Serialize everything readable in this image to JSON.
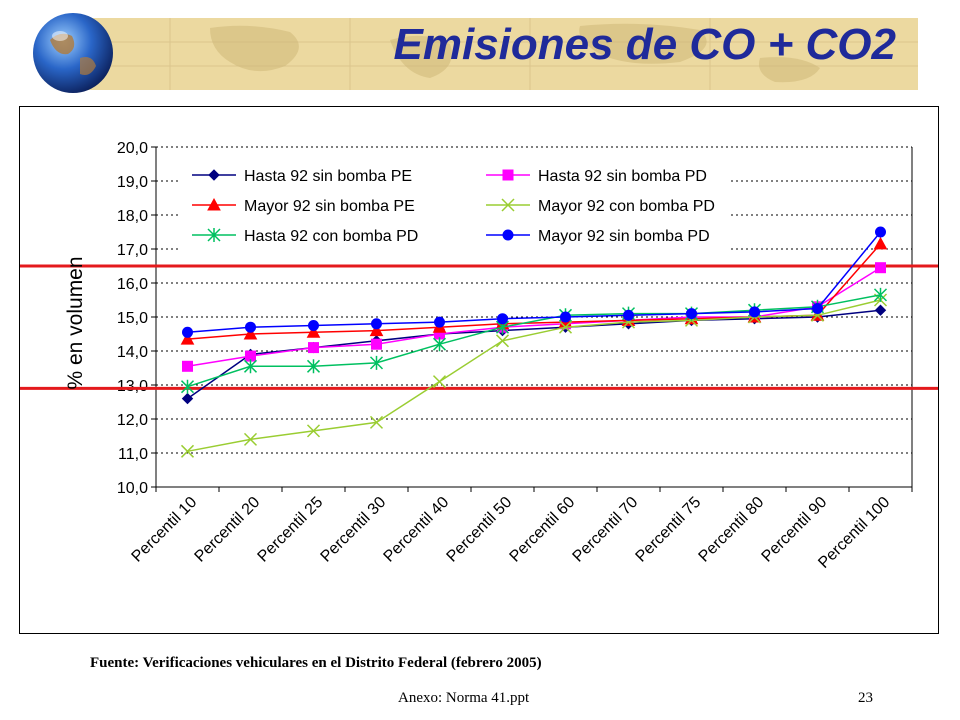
{
  "slide": {
    "title": "Emisiones de CO + CO2",
    "source_note": "Fuente: Verificaciones vehiculares en el Distrito Federal (febrero 2005)",
    "footer_file": "Anexo: Norma 41.ppt",
    "page_number": "23"
  },
  "colors": {
    "banner": "#ecd9a0",
    "title": "#1f2a9a",
    "reference_line": "#e41a1c"
  },
  "chart_data": {
    "type": "line",
    "title": "",
    "xlabel": "",
    "ylabel": "% en volumen",
    "ylim": [
      10.0,
      20.0
    ],
    "yticks": [
      "10,0",
      "11,0",
      "12,0",
      "13,0",
      "14,0",
      "15,0",
      "16,0",
      "17,0",
      "18,0",
      "19,0",
      "20,0"
    ],
    "grid": "horizontal dotted",
    "legend_position": "top",
    "categories": [
      "Percentil 10",
      "Percentil 20",
      "Percentil 25",
      "Percentil 30",
      "Percentil 40",
      "Percentil 50",
      "Percentil 60",
      "Percentil 70",
      "Percentil 75",
      "Percentil 80",
      "Percentil 90",
      "Percentil 100"
    ],
    "reference_lines": [
      12.9,
      16.5
    ],
    "series": [
      {
        "name": "Hasta 92 sin bomba PE",
        "color": "#000080",
        "marker": "diamond",
        "values": [
          12.6,
          13.9,
          14.1,
          14.3,
          14.5,
          14.6,
          14.7,
          14.8,
          14.9,
          14.95,
          15.0,
          15.2
        ]
      },
      {
        "name": "Hasta 92 sin bomba PD",
        "color": "#ff00ff",
        "marker": "square",
        "values": [
          13.55,
          13.85,
          14.1,
          14.2,
          14.5,
          14.7,
          14.8,
          14.9,
          15.0,
          15.0,
          15.3,
          16.45
        ]
      },
      {
        "name": "Mayor 92 sin bomba PE",
        "color": "#ff0000",
        "marker": "triangle",
        "values": [
          14.35,
          14.5,
          14.55,
          14.6,
          14.7,
          14.8,
          14.85,
          14.9,
          14.95,
          15.0,
          15.05,
          17.15
        ]
      },
      {
        "name": "Mayor 92 con bomba PD",
        "color": "#9acd32",
        "marker": "x",
        "values": [
          11.05,
          11.4,
          11.65,
          11.9,
          13.1,
          14.3,
          14.7,
          14.85,
          14.9,
          15.0,
          15.05,
          15.5
        ]
      },
      {
        "name": "Hasta 92 con bomba PD",
        "color": "#00c060",
        "marker": "asterisk",
        "values": [
          12.95,
          13.55,
          13.55,
          13.65,
          14.2,
          14.7,
          15.05,
          15.1,
          15.1,
          15.2,
          15.3,
          15.65
        ]
      },
      {
        "name": "Mayor 92 sin bomba PD",
        "color": "#0000ff",
        "marker": "circle",
        "values": [
          14.55,
          14.7,
          14.75,
          14.8,
          14.85,
          14.95,
          15.0,
          15.05,
          15.1,
          15.15,
          15.25,
          17.5
        ]
      }
    ]
  }
}
